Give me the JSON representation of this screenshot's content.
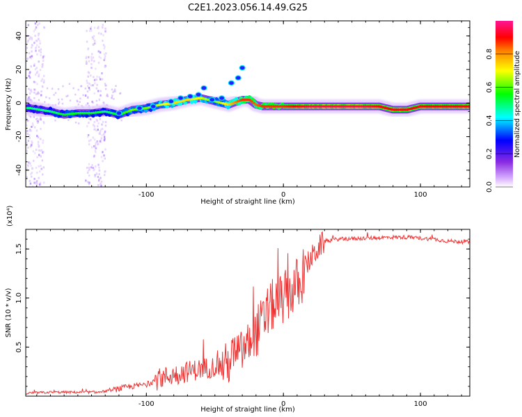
{
  "chart_data": [
    {
      "type": "heatmap",
      "title": "C2E1.2023.056.14.49.G25",
      "xlabel": "Height of straight line (km)",
      "ylabel": "Frequency (Hz)",
      "xlim": [
        -188,
        136
      ],
      "ylim": [
        -50,
        49
      ],
      "xticks": [
        -100,
        0,
        100
      ],
      "yticks": [
        -40,
        -20,
        0,
        20,
        40
      ],
      "colorbar": {
        "label": "Normalized spectral amplitude",
        "range": [
          0,
          1
        ],
        "ticks": [
          "0.0",
          "0.2",
          "0.4",
          "0.6",
          "0.8"
        ],
        "colormap": [
          "#ffffff",
          "#d9b3ff",
          "#8a2be2",
          "#0000ff",
          "#00ffff",
          "#00ff00",
          "#ffff00",
          "#ff8000",
          "#ff0000",
          "#ff1493"
        ]
      },
      "ridge": {
        "x": [
          -185,
          -170,
          -160,
          -150,
          -140,
          -130,
          -120,
          -110,
          -100,
          -90,
          -80,
          -70,
          -60,
          -50,
          -40,
          -30,
          -25,
          -20,
          -15,
          -10,
          0,
          10,
          20,
          40,
          60,
          70,
          80,
          90,
          100,
          110,
          120,
          130,
          136
        ],
        "y": [
          -3,
          -5,
          -7,
          -6,
          -6,
          -5,
          -7,
          -4,
          -3,
          -1,
          0,
          2,
          3,
          1,
          -1,
          2,
          2,
          -1,
          -2,
          -2,
          -2,
          -2,
          -2,
          -2,
          -2,
          -2,
          -4,
          -4,
          -2,
          -2,
          -2,
          -2,
          -2
        ],
        "amplitude": [
          0.5,
          0.5,
          0.55,
          0.55,
          0.55,
          0.5,
          0.55,
          0.6,
          0.6,
          0.65,
          0.7,
          0.7,
          0.65,
          0.6,
          0.7,
          0.85,
          0.85,
          0.8,
          0.85,
          0.85,
          0.85,
          0.9,
          0.95,
          0.95,
          0.95,
          0.9,
          0.9,
          0.9,
          0.9,
          0.9,
          0.9,
          0.9,
          0.9
        ]
      },
      "noise_bands_x": [
        [
          -188,
          -175
        ],
        [
          -145,
          -130
        ]
      ]
    },
    {
      "type": "line",
      "title": "",
      "xlabel": "Height of straight line (km)",
      "ylabel": "SNR (10 * v/v)",
      "y_multiplier": "(x10⁴)",
      "xlim": [
        -188,
        136
      ],
      "ylim": [
        0,
        1.7
      ],
      "xticks": [
        -100,
        0,
        100
      ],
      "yticks": [
        "0.5",
        "1.0",
        "1.5"
      ],
      "color": "#ee3333",
      "series": [
        {
          "x": [
            -188,
            -170,
            -150,
            -135,
            -125,
            -115,
            -100,
            -90,
            -80,
            -70,
            -60,
            -50,
            -40,
            -35,
            -30,
            -25,
            -20,
            -15,
            -10,
            -5,
            0,
            5,
            10,
            12,
            15,
            20,
            25,
            30,
            40,
            60,
            80,
            90,
            100,
            110,
            120,
            136
          ],
          "y": [
            0.03,
            0.04,
            0.04,
            0.04,
            0.06,
            0.09,
            0.12,
            0.18,
            0.22,
            0.25,
            0.28,
            0.3,
            0.33,
            0.45,
            0.45,
            0.55,
            0.65,
            0.75,
            0.9,
            0.95,
            1.0,
            1.05,
            1.15,
            1.1,
            1.3,
            1.4,
            1.5,
            1.58,
            1.6,
            1.61,
            1.62,
            1.62,
            1.61,
            1.6,
            1.58,
            1.57
          ]
        }
      ]
    }
  ]
}
